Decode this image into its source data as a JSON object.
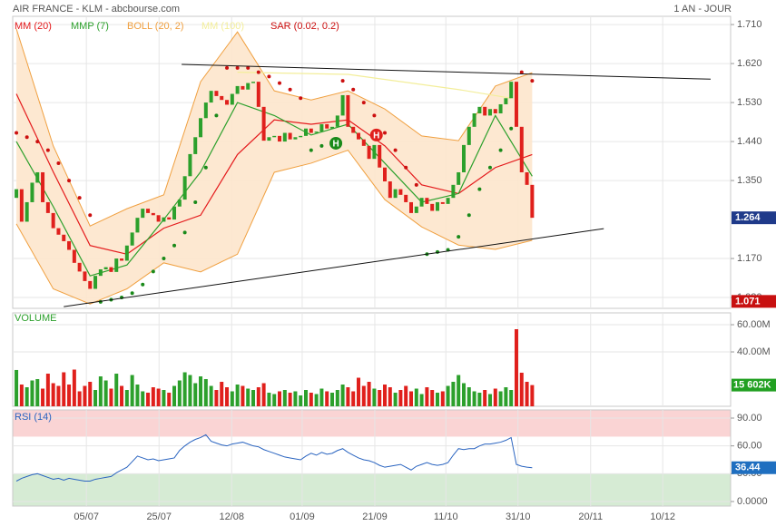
{
  "header": {
    "title": "AIR FRANCE - KLM - abcbourse.com",
    "period": "1 AN - JOUR"
  },
  "chart_data": [
    {
      "type": "candlestick",
      "xlim": [
        -0.7,
        135.7
      ],
      "xticks": [
        {
          "value": 13.3,
          "label": "05/07"
        },
        {
          "value": 27.1,
          "label": "25/07"
        },
        {
          "value": 40.9,
          "label": "12/08"
        },
        {
          "value": 54.3,
          "label": "01/09"
        },
        {
          "value": 68.1,
          "label": "21/09"
        },
        {
          "value": 81.6,
          "label": "11/10"
        },
        {
          "value": 95.3,
          "label": "31/10"
        },
        {
          "value": 109.1,
          "label": "20/11"
        },
        {
          "value": 122.8,
          "label": "10/12"
        }
      ],
      "ylim": [
        1.055,
        1.729
      ],
      "yticks": [
        {
          "value": 1.71,
          "label": "1.710"
        },
        {
          "value": 1.62,
          "label": "1.620"
        },
        {
          "value": 1.53,
          "label": "1.530"
        },
        {
          "value": 1.44,
          "label": "1.440"
        },
        {
          "value": 1.35,
          "label": "1.350"
        },
        {
          "value": 1.17,
          "label": "1.170"
        },
        {
          "value": 1.08,
          "label": "1.080"
        }
      ],
      "grid": true,
      "up_color": "#2ca02c",
      "down_color": "#e0201c",
      "open": [
        1.31,
        1.33,
        1.255,
        1.3,
        1.345,
        1.369,
        1.3,
        1.275,
        1.24,
        1.225,
        1.21,
        1.19,
        1.16,
        1.14,
        1.118,
        1.1,
        1.13,
        1.145,
        1.15,
        1.139,
        1.17,
        1.165,
        1.2,
        1.23,
        1.264,
        1.285,
        1.275,
        1.27,
        1.255,
        1.265,
        1.26,
        1.29,
        1.306,
        1.36,
        1.411,
        1.45,
        1.494,
        1.53,
        1.557,
        1.545,
        1.536,
        1.525,
        1.55,
        1.568,
        1.56,
        1.575,
        1.578,
        1.52,
        1.442,
        1.45,
        1.453,
        1.44,
        1.46,
        1.445,
        1.45,
        1.453,
        1.47,
        1.46,
        1.463,
        1.48,
        1.47,
        1.474,
        1.5,
        1.547,
        1.474,
        1.46,
        1.445,
        1.43,
        1.4,
        1.432,
        1.38,
        1.348,
        1.31,
        1.33,
        1.317,
        1.3,
        1.275,
        1.29,
        1.31,
        1.296,
        1.28,
        1.3,
        1.296,
        1.31,
        1.34,
        1.369,
        1.432,
        1.474,
        1.505,
        1.52,
        1.5,
        1.515,
        1.505,
        1.526,
        1.54,
        1.578,
        1.474,
        1.369,
        1.34
      ],
      "close": [
        1.33,
        1.255,
        1.3,
        1.345,
        1.369,
        1.3,
        1.275,
        1.24,
        1.225,
        1.21,
        1.19,
        1.16,
        1.14,
        1.118,
        1.1,
        1.13,
        1.145,
        1.15,
        1.139,
        1.17,
        1.165,
        1.2,
        1.23,
        1.264,
        1.285,
        1.275,
        1.27,
        1.255,
        1.265,
        1.26,
        1.29,
        1.306,
        1.36,
        1.411,
        1.45,
        1.494,
        1.53,
        1.557,
        1.545,
        1.536,
        1.525,
        1.55,
        1.568,
        1.56,
        1.575,
        1.578,
        1.52,
        1.442,
        1.45,
        1.453,
        1.44,
        1.46,
        1.445,
        1.45,
        1.453,
        1.47,
        1.46,
        1.463,
        1.48,
        1.47,
        1.474,
        1.5,
        1.547,
        1.474,
        1.46,
        1.445,
        1.43,
        1.4,
        1.432,
        1.38,
        1.348,
        1.31,
        1.33,
        1.317,
        1.3,
        1.275,
        1.29,
        1.31,
        1.296,
        1.28,
        1.3,
        1.296,
        1.31,
        1.34,
        1.369,
        1.432,
        1.474,
        1.505,
        1.52,
        1.5,
        1.515,
        1.505,
        1.526,
        1.54,
        1.578,
        1.474,
        1.369,
        1.34,
        1.264
      ],
      "min_value": 1.071,
      "indicators": [
        {
          "name": "MM (20)",
          "color": "#e41a1c",
          "x": [
            0,
            7,
            14,
            21,
            28,
            35,
            42,
            49,
            56,
            63,
            70,
            77,
            84,
            91,
            98
          ],
          "values": [
            1.55,
            1.37,
            1.2,
            1.18,
            1.24,
            1.27,
            1.41,
            1.49,
            1.48,
            1.49,
            1.43,
            1.34,
            1.32,
            1.38,
            1.41
          ]
        },
        {
          "name": "MMP (7)",
          "color": "#2ca02c",
          "x": [
            0,
            7,
            14,
            21,
            28,
            35,
            42,
            49,
            56,
            63,
            70,
            77,
            84,
            91,
            98
          ],
          "values": [
            1.44,
            1.29,
            1.13,
            1.155,
            1.26,
            1.37,
            1.53,
            1.5,
            1.455,
            1.48,
            1.39,
            1.3,
            1.32,
            1.5,
            1.36
          ]
        },
        {
          "name": "BOLL (20, 2)",
          "color": "#f0a040",
          "fill": "#fde6cc",
          "x": [
            0,
            7,
            14,
            21,
            28,
            35,
            42,
            49,
            56,
            63,
            70,
            77,
            84,
            91,
            98
          ],
          "upper": [
            1.7,
            1.43,
            1.245,
            1.285,
            1.317,
            1.578,
            1.693,
            1.557,
            1.536,
            1.557,
            1.515,
            1.453,
            1.442,
            1.568,
            1.599
          ],
          "lower": [
            1.25,
            1.1,
            1.065,
            1.1,
            1.16,
            1.139,
            1.18,
            1.369,
            1.39,
            1.42,
            1.306,
            1.243,
            1.201,
            1.191,
            1.212
          ]
        },
        {
          "name": "MM (100)",
          "color": "#f3ee9a",
          "x": [
            42,
            63,
            84,
            94
          ],
          "values": [
            1.6,
            1.595,
            1.56,
            1.54
          ]
        },
        {
          "name": "SAR (0.02, 0.2)",
          "color": "#cc1010",
          "below_color": "#1a8a1a",
          "x": [
            0,
            2,
            4,
            6,
            8,
            10,
            12,
            14,
            16,
            18,
            20,
            22,
            24,
            26,
            28,
            30,
            32,
            34,
            36,
            38,
            40,
            42,
            44,
            46,
            48,
            50,
            52,
            54,
            56,
            58,
            60,
            62,
            64,
            66,
            68,
            70,
            72,
            74,
            76,
            78,
            80,
            82,
            84,
            86,
            88,
            90,
            92,
            94,
            96,
            98
          ],
          "values": [
            1.46,
            1.45,
            1.44,
            1.42,
            1.39,
            1.35,
            1.31,
            1.27,
            1.07,
            1.075,
            1.08,
            1.09,
            1.11,
            1.14,
            1.17,
            1.2,
            1.23,
            1.3,
            1.38,
            1.5,
            1.61,
            1.61,
            1.61,
            1.6,
            1.59,
            1.575,
            1.56,
            1.54,
            1.42,
            1.43,
            1.44,
            1.58,
            1.56,
            1.53,
            1.5,
            1.46,
            1.42,
            1.38,
            1.34,
            1.18,
            1.185,
            1.19,
            1.22,
            1.27,
            1.33,
            1.38,
            1.42,
            1.47,
            1.6,
            1.58
          ]
        }
      ],
      "trendlines": [
        {
          "x": [
            31.4,
            131.9
          ],
          "values": [
            1.618,
            1.584
          ]
        },
        {
          "x": [
            9.0,
            111.6
          ],
          "values": [
            1.059,
            1.239
          ]
        }
      ],
      "markers": [
        {
          "label": "H",
          "x": 60.7,
          "value": 1.436,
          "color": "#1a8a1a"
        },
        {
          "label": "H",
          "x": 68.4,
          "value": 1.455,
          "color": "#e0201c"
        }
      ]
    },
    {
      "type": "bar",
      "title": "VOLUME",
      "ylim": [
        0,
        68700000
      ],
      "yticks": [
        {
          "value": 60000000,
          "label": "60.00M"
        },
        {
          "value": 40000000,
          "label": "40.00M"
        }
      ],
      "values": [
        26700000.0,
        16000000.0,
        14000000.0,
        19000000.0,
        20000000.0,
        13000000.0,
        24000000.0,
        17000000.0,
        15000000.0,
        25000000.0,
        16000000.0,
        27000000.0,
        11000000.0,
        15000000.0,
        18000000.0,
        12000000.0,
        22000000.0,
        19000000.0,
        13000000.0,
        24000000.0,
        15000000.0,
        12000000.0,
        23000000.0,
        16000000.0,
        11000000.0,
        10000000.0,
        14000000.0,
        13000000.0,
        12000000.0,
        10000000.0,
        15000000.0,
        19000000.0,
        25000000.0,
        23000000.0,
        17000000.0,
        22000000.0,
        20000000.0,
        15000000.0,
        12000000.0,
        18000000.0,
        14000000.0,
        11000000.0,
        16000000.0,
        15000000.0,
        13000000.0,
        12000000.0,
        14000000.0,
        17000000.0,
        10000000.0,
        9000000.0,
        11000000.0,
        12000000.0,
        10000000.0,
        11000000.0,
        8000000.0,
        12000000.0,
        10000000.0,
        9000000.0,
        13000000.0,
        11000000.0,
        10000000.0,
        12000000.0,
        16000000.0,
        14000000.0,
        11000000.0,
        21000000.0,
        15000000.0,
        18000000.0,
        13000000.0,
        12000000.0,
        16000000.0,
        14000000.0,
        10000000.0,
        12000000.0,
        15000000.0,
        11000000.0,
        13000000.0,
        9000000.0,
        14000000.0,
        12000000.0,
        10000000.0,
        11000000.0,
        15000000.0,
        18000000.0,
        23000000.0,
        17000000.0,
        14000000.0,
        11000000.0,
        10000000.0,
        12000000.0,
        9000000.0,
        13000000.0,
        11000000.0,
        14000000.0,
        12000000.0,
        56700000.0,
        24700000.0,
        18000000.0,
        15602000.0
      ],
      "last_value_label": "15 602K"
    },
    {
      "type": "line",
      "title": "RSI (14)",
      "color": "#2a64c0",
      "ylim": [
        -4.9,
        98.8
      ],
      "yticks": [
        {
          "value": 90,
          "label": "90.00"
        },
        {
          "value": 60,
          "label": "60.00"
        },
        {
          "value": 30,
          "label": "30.00"
        },
        {
          "value": 0,
          "label": "0.0000"
        }
      ],
      "zones": [
        {
          "from": 70,
          "to": 98.8,
          "color": "#fad4d4"
        },
        {
          "from": -4.9,
          "to": 30,
          "color": "#d6ebd4"
        }
      ],
      "values": [
        22,
        25,
        27,
        29,
        30,
        28,
        26,
        24,
        25,
        23,
        25,
        24,
        23,
        22,
        22,
        24,
        25,
        26,
        27,
        31,
        34,
        37,
        43,
        49,
        47,
        45,
        46,
        44,
        45,
        46,
        47,
        55,
        60,
        64,
        67,
        69,
        72,
        65,
        63,
        61,
        60,
        62,
        63,
        64,
        62,
        60,
        59,
        56,
        54,
        52,
        50,
        48,
        47,
        46,
        45,
        49,
        52,
        50,
        53,
        51,
        52,
        55,
        57,
        53,
        50,
        47,
        45,
        44,
        42,
        39,
        37,
        38,
        39,
        40,
        37,
        34,
        38,
        40,
        42,
        40,
        39,
        40,
        42,
        50,
        57,
        56,
        57,
        57,
        60,
        62,
        62,
        63,
        64,
        66,
        69,
        40,
        38,
        37,
        36.44
      ]
    }
  ]
}
